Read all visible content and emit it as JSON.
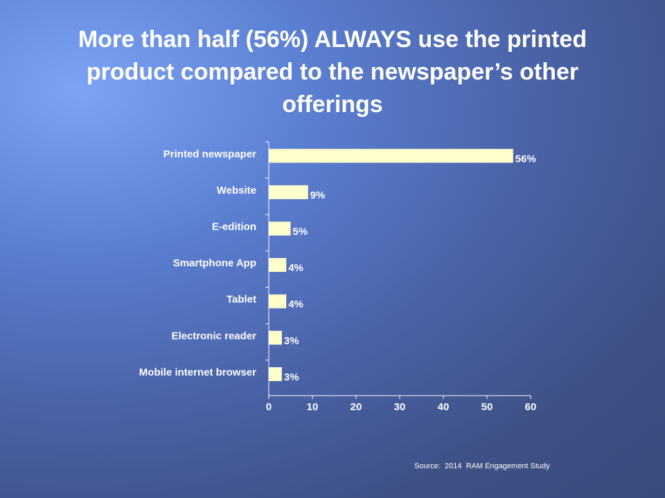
{
  "slide": {
    "title": "More than half (56%) ALWAYS use the printed product compared to the newspaper’s other offerings",
    "source": "Source:  2014  RAM Engagement Study"
  },
  "colors": {
    "bar": "#ffffcc",
    "axis": "#ffffff",
    "text": "#ffffff"
  },
  "chart_data": {
    "type": "bar",
    "orientation": "horizontal",
    "categories": [
      "Printed newspaper",
      "Website",
      "E-edition",
      "Smartphone App",
      "Tablet",
      "Electronic reader",
      "Mobile internet browser"
    ],
    "values": [
      56,
      9,
      5,
      4,
      4,
      3,
      3
    ],
    "value_labels": [
      "56%",
      "9%",
      "5%",
      "4%",
      "4%",
      "3%",
      "3%"
    ],
    "xlim": [
      0,
      60
    ],
    "xticks": [
      0,
      10,
      20,
      30,
      40,
      50,
      60
    ],
    "grid": false,
    "legend": "none"
  }
}
